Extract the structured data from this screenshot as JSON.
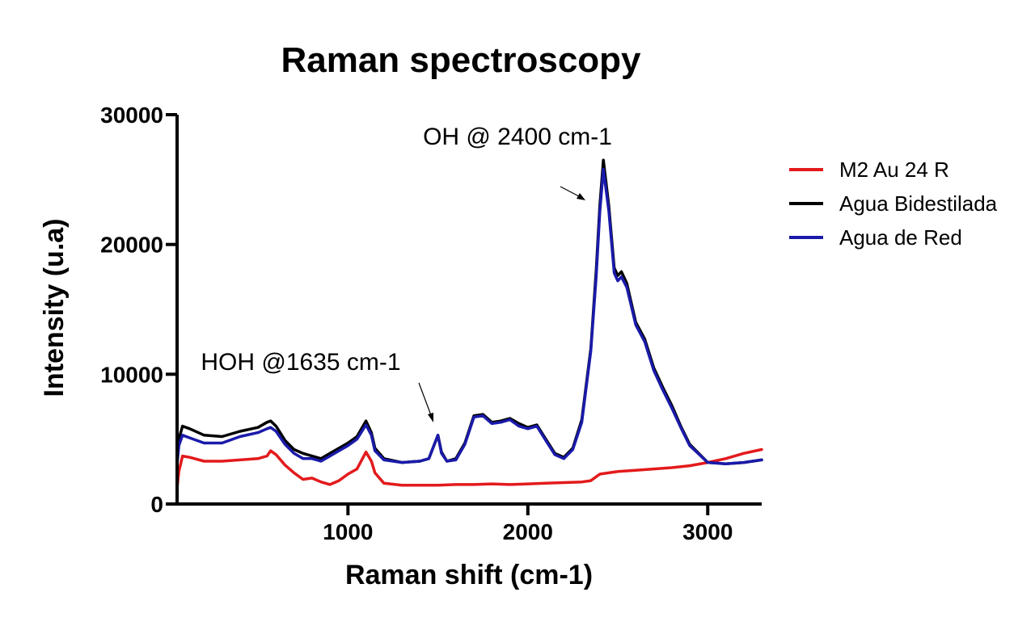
{
  "chart_data": {
    "type": "line",
    "title": "Raman spectroscopy",
    "xlabel": "Raman shift (cm-1)",
    "ylabel": "Intensity (u.a)",
    "xlim": [
      50,
      3300
    ],
    "ylim": [
      0,
      30000
    ],
    "x_ticks": [
      1000,
      2000,
      3000
    ],
    "y_ticks": [
      0,
      10000,
      20000,
      30000
    ],
    "x_tick_labels": [
      "1000",
      "2000",
      "3000"
    ],
    "y_tick_labels": [
      "0",
      "10000",
      "20000",
      "30000"
    ],
    "grid": false,
    "legend_position": "right",
    "annotations": [
      {
        "text": "OH @ 2400 cm-1",
        "x": 2400,
        "y": 24000
      },
      {
        "text": "HOH @1635 cm-1",
        "x": 1500,
        "y": 6200
      }
    ],
    "series": [
      {
        "name": "M2 Au 24 R",
        "color": "#e31a1c",
        "x": [
          50,
          60,
          80,
          120,
          200,
          300,
          400,
          500,
          550,
          570,
          600,
          650,
          700,
          750,
          800,
          850,
          900,
          950,
          1000,
          1050,
          1100,
          1130,
          1150,
          1200,
          1300,
          1400,
          1500,
          1600,
          1700,
          1800,
          1900,
          2000,
          2100,
          2200,
          2300,
          2350,
          2400,
          2450,
          2500,
          2600,
          2700,
          2800,
          2900,
          3000,
          3100,
          3200,
          3300
        ],
        "y": [
          1200,
          2500,
          3700,
          3600,
          3300,
          3300,
          3400,
          3500,
          3700,
          4100,
          3800,
          3000,
          2400,
          1900,
          2000,
          1700,
          1500,
          1800,
          2300,
          2700,
          4000,
          3300,
          2400,
          1600,
          1450,
          1450,
          1450,
          1500,
          1500,
          1550,
          1500,
          1550,
          1600,
          1650,
          1700,
          1800,
          2300,
          2400,
          2500,
          2600,
          2700,
          2800,
          2950,
          3200,
          3500,
          3900,
          4200
        ]
      },
      {
        "name": "Agua Bidestilada",
        "color": "#000000",
        "x": [
          50,
          60,
          80,
          120,
          200,
          300,
          400,
          500,
          550,
          570,
          600,
          650,
          700,
          750,
          800,
          850,
          900,
          950,
          1000,
          1050,
          1100,
          1130,
          1150,
          1200,
          1300,
          1400,
          1450,
          1500,
          1520,
          1550,
          1600,
          1650,
          1700,
          1750,
          1800,
          1850,
          1900,
          1950,
          2000,
          2050,
          2100,
          2150,
          2200,
          2250,
          2300,
          2350,
          2380,
          2400,
          2420,
          2450,
          2480,
          2500,
          2520,
          2550,
          2600,
          2650,
          2700,
          2750,
          2800,
          2850,
          2900,
          3000,
          3100,
          3200,
          3300
        ],
        "y": [
          3500,
          5000,
          6000,
          5800,
          5300,
          5200,
          5600,
          5900,
          6300,
          6400,
          6000,
          4900,
          4200,
          3900,
          3700,
          3500,
          3900,
          4300,
          4700,
          5200,
          6400,
          5500,
          4300,
          3500,
          3200,
          3300,
          3500,
          5300,
          4000,
          3300,
          3500,
          4700,
          6800,
          6900,
          6300,
          6400,
          6600,
          6200,
          5900,
          6100,
          5000,
          3900,
          3600,
          4300,
          6500,
          12000,
          18000,
          23000,
          26500,
          23000,
          18200,
          17600,
          17900,
          17000,
          14000,
          12700,
          10500,
          9000,
          7600,
          6000,
          4600,
          3200,
          3100,
          3200,
          3400
        ]
      },
      {
        "name": "Agua de Red",
        "color": "#1a1aaa",
        "x": [
          50,
          60,
          80,
          120,
          200,
          300,
          400,
          500,
          550,
          570,
          600,
          650,
          700,
          750,
          800,
          850,
          900,
          950,
          1000,
          1050,
          1100,
          1130,
          1150,
          1200,
          1300,
          1400,
          1450,
          1500,
          1520,
          1550,
          1600,
          1650,
          1700,
          1750,
          1800,
          1850,
          1900,
          1950,
          2000,
          2050,
          2100,
          2150,
          2200,
          2250,
          2300,
          2350,
          2380,
          2400,
          2420,
          2450,
          2480,
          2500,
          2520,
          2550,
          2600,
          2650,
          2700,
          2750,
          2800,
          2850,
          2900,
          3000,
          3100,
          3200,
          3300
        ],
        "y": [
          3000,
          4500,
          5300,
          5100,
          4700,
          4700,
          5200,
          5500,
          5800,
          5900,
          5600,
          4600,
          3900,
          3500,
          3500,
          3300,
          3700,
          4100,
          4500,
          5000,
          6100,
          5300,
          4100,
          3400,
          3200,
          3300,
          3500,
          5300,
          3900,
          3300,
          3400,
          4600,
          6700,
          6800,
          6200,
          6300,
          6500,
          6000,
          5800,
          6000,
          4900,
          3800,
          3500,
          4200,
          6300,
          11800,
          17500,
          22500,
          25800,
          22600,
          17800,
          17200,
          17500,
          16700,
          13800,
          12500,
          10300,
          8800,
          7400,
          5900,
          4500,
          3200,
          3100,
          3200,
          3400
        ]
      }
    ]
  }
}
